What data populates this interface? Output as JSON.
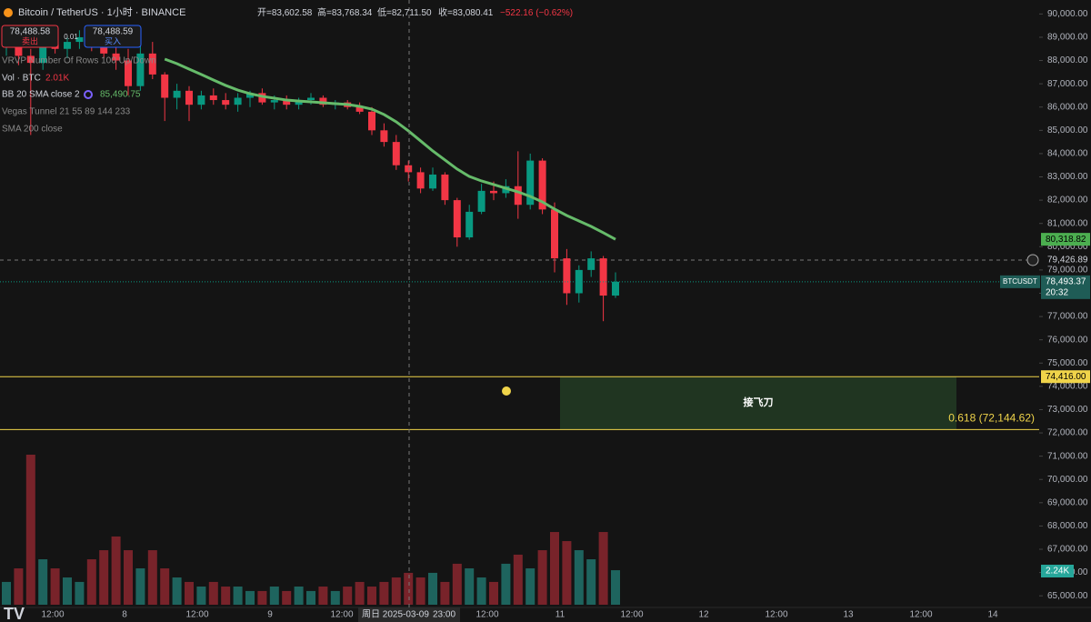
{
  "header": {
    "symbol": "Bitcoin / TetherUS · 1小时 · BINANCE",
    "ohlc": [
      "开=83,602.58",
      "高=83,768.34",
      "低=82,711.50",
      "收=83,080.41"
    ],
    "change": "−522.16 (−0.62%)"
  },
  "trade": {
    "sell_price": "78,488.58",
    "sell": "卖出",
    "qty": "0.01",
    "buy_price": "78,488.59",
    "buy": "买入"
  },
  "indicators": [
    {
      "name": "VRVP Number Of Rows 100 Up/Down"
    },
    {
      "name": "Vol · BTC",
      "value": "2.01K"
    },
    {
      "name": "BB 20 SMA close 2",
      "value": "85,490.75"
    },
    {
      "name": "Vegas Tunnel 21 55 89 144 233"
    },
    {
      "name": "SMA 200 close"
    }
  ],
  "crosshair": {
    "date": "周日 2025-03-09",
    "time": "23:00"
  },
  "chart_data": {
    "type": "candlestick",
    "up_color": "#089981",
    "down_color": "#f23645",
    "open": [
      88600,
      88900,
      88200,
      87900,
      88700,
      88500,
      88800,
      89000,
      88600,
      88300,
      88000,
      86900,
      88300,
      87400,
      86400,
      86700,
      86100,
      86500,
      86300,
      86100,
      86400,
      86600,
      86200,
      86300,
      86100,
      86300,
      86400,
      86100,
      86200,
      86000,
      85800,
      85000,
      84500,
      83500,
      83200,
      82500,
      83100,
      82000,
      80400,
      81500,
      82400,
      82300,
      82600,
      81800,
      83700,
      81600,
      79500,
      78000,
      79000,
      79500,
      77900
    ],
    "high": [
      89300,
      89200,
      88500,
      88900,
      89100,
      89000,
      89300,
      89200,
      88800,
      88700,
      88500,
      88600,
      88800,
      87500,
      87000,
      86900,
      86700,
      86800,
      86600,
      86600,
      86700,
      86800,
      86500,
      86500,
      86400,
      86600,
      86500,
      86300,
      86300,
      86200,
      86000,
      85300,
      84800,
      83700,
      83400,
      83400,
      83200,
      82100,
      81800,
      82700,
      82800,
      82900,
      84100,
      84000,
      83800,
      81900,
      79900,
      79200,
      79800,
      79600,
      78900
    ],
    "low": [
      88200,
      87800,
      84800,
      87600,
      88300,
      88100,
      88500,
      88400,
      88100,
      87600,
      86500,
      86700,
      87200,
      85400,
      85900,
      85400,
      85900,
      86100,
      85900,
      85800,
      86000,
      86100,
      85900,
      85900,
      85900,
      86100,
      86000,
      85900,
      85900,
      85700,
      84800,
      84300,
      83300,
      82800,
      82300,
      82400,
      81800,
      80000,
      80300,
      81400,
      82000,
      82100,
      81200,
      81600,
      81400,
      78900,
      77500,
      77600,
      78700,
      76800,
      77800
    ],
    "close": [
      88900,
      88200,
      87900,
      88700,
      88500,
      88800,
      89000,
      88600,
      88300,
      88000,
      86900,
      88300,
      87400,
      86400,
      86700,
      86100,
      86500,
      86300,
      86100,
      86400,
      86600,
      86200,
      86300,
      86100,
      86300,
      86400,
      86100,
      86200,
      86000,
      85800,
      85000,
      84500,
      83500,
      83200,
      82500,
      83100,
      82000,
      80400,
      81500,
      82400,
      82300,
      82600,
      81800,
      83700,
      81600,
      79500,
      78000,
      79000,
      79500,
      77900,
      78493.37
    ],
    "volume": {
      "values": [
        1480,
        2360,
        9740,
        2950,
        2360,
        1770,
        1480,
        2950,
        3540,
        4430,
        3540,
        2360,
        3540,
        2360,
        1770,
        1480,
        1180,
        1480,
        1180,
        1180,
        890,
        890,
        1180,
        890,
        1180,
        890,
        1180,
        890,
        1180,
        1480,
        1180,
        1480,
        1770,
        2070,
        1770,
        2070,
        1480,
        2660,
        2360,
        1770,
        1480,
        2660,
        3250,
        2360,
        3540,
        4720,
        4130,
        3540,
        2950,
        4720,
        2240
      ],
      "last_label": "2.24K",
      "color": "#26a69a"
    },
    "ma": {
      "color": "#66bb6a",
      "values": [
        null,
        null,
        null,
        null,
        null,
        null,
        null,
        null,
        null,
        null,
        null,
        null,
        null,
        88060,
        87865,
        87630,
        87400,
        87160,
        86930,
        86730,
        86575,
        86460,
        86380,
        86300,
        86260,
        86225,
        86185,
        86145,
        86110,
        86030,
        85910,
        85680,
        85365,
        84975,
        84545,
        84115,
        83725,
        83335,
        83020,
        82825,
        82670,
        82510,
        82355,
        82160,
        81925,
        81615,
        81340,
        81105,
        80870,
        80600,
        80318.82
      ],
      "last_label": "80,318.82"
    },
    "last_price": {
      "label": "78,493.37",
      "symbol": "BTCUSDT",
      "countdown": "20:32"
    },
    "crosshair_price": {
      "value": 79426.89,
      "label": "79,426.89"
    },
    "levels": [
      {
        "value": 74416,
        "label": "74,416.00",
        "color": "#f0d44a"
      },
      {
        "value": 72144.62,
        "color": "#f0d44a"
      }
    ],
    "zone": {
      "top": 74416,
      "bottom": 72144.62,
      "text": "接飞刀",
      "fib_label": "0.618 (72,144.62)"
    },
    "x_labels": [
      "12:00",
      "8",
      "12:00",
      "9",
      "12:00",
      "12:00",
      "11",
      "12:00",
      "12",
      "12:00",
      "13",
      "12:00",
      "14"
    ],
    "ylim": [
      64500,
      90600
    ],
    "yticks": [
      {
        "value": 90000,
        "label": "90,000.00"
      },
      {
        "value": 89000,
        "label": "89,000.00"
      },
      {
        "value": 88000,
        "label": "88,000.00"
      },
      {
        "value": 87000,
        "label": "87,000.00"
      },
      {
        "value": 86000,
        "label": "86,000.00"
      },
      {
        "value": 85000,
        "label": "85,000.00"
      },
      {
        "value": 84000,
        "label": "84,000.00"
      },
      {
        "value": 83000,
        "label": "83,000.00"
      },
      {
        "value": 82000,
        "label": "82,000.00"
      },
      {
        "value": 81000,
        "label": "81,000.00"
      },
      {
        "value": 80000,
        "label": "80,000.00"
      },
      {
        "value": 79000,
        "label": "79,000.00"
      },
      {
        "value": 78000,
        "label": "78,000.00"
      },
      {
        "value": 77000,
        "label": "77,000.00"
      },
      {
        "value": 76000,
        "label": "76,000.00"
      },
      {
        "value": 75000,
        "label": "75,000.00"
      },
      {
        "value": 74000,
        "label": "74,000.00"
      },
      {
        "value": 73000,
        "label": "73,000.00"
      },
      {
        "value": 72000,
        "label": "72,000.00"
      },
      {
        "value": 71000,
        "label": "71,000.00"
      },
      {
        "value": 70000,
        "label": "70,000.00"
      },
      {
        "value": 69000,
        "label": "69,000.00"
      },
      {
        "value": 68000,
        "label": "68,000.00"
      },
      {
        "value": 67000,
        "label": "67,000.00"
      },
      {
        "value": 66000,
        "label": "66,000.00"
      },
      {
        "value": 65000,
        "label": "65,000.00"
      }
    ]
  }
}
